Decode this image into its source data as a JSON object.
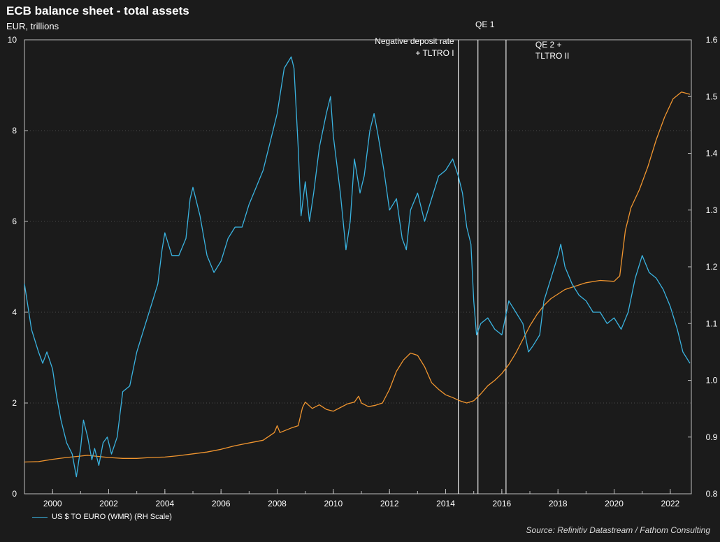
{
  "chart_data": {
    "type": "line",
    "title": "ECB balance sheet - total assets",
    "subtitle": "EUR, trillions",
    "source": "Source: Refinitiv Datastream / Fathom Consulting",
    "x_range": [
      1999.0,
      2022.75
    ],
    "x_ticks": [
      2000,
      2002,
      2004,
      2006,
      2008,
      2010,
      2012,
      2014,
      2016,
      2018,
      2020,
      2022
    ],
    "left_axis": {
      "ylim": [
        0,
        10
      ],
      "ticks": [
        0,
        2,
        4,
        6,
        8,
        10
      ]
    },
    "right_axis": {
      "ylim": [
        0.8,
        1.6
      ],
      "ticks": [
        0.8,
        0.9,
        1.0,
        1.1,
        1.2,
        1.3,
        1.4,
        1.5,
        1.6
      ]
    },
    "grid": "horizontal dotted",
    "legend_position": "bottom-left",
    "colors": {
      "total_assets": "#f0952f",
      "usd_euro": "#3ab3e0",
      "event_lines": "#e8e8e8"
    },
    "events": [
      {
        "x": 2014.45,
        "label_lines": [
          "Negative deposit rate",
          "+ TLTRO I"
        ],
        "align": "right"
      },
      {
        "x": 2015.15,
        "label_lines": [
          "QE 1"
        ],
        "align": "above"
      },
      {
        "x": 2016.15,
        "label_lines": [
          "QE 2 +",
          "TLTRO II"
        ],
        "align": "left"
      }
    ],
    "series": [
      {
        "name": "",
        "axis": "left",
        "color_key": "total_assets",
        "points": [
          [
            1999.0,
            0.7
          ],
          [
            1999.5,
            0.71
          ],
          [
            2000.0,
            0.76
          ],
          [
            2000.5,
            0.8
          ],
          [
            2001.0,
            0.83
          ],
          [
            2001.25,
            0.85
          ],
          [
            2001.5,
            0.83
          ],
          [
            2002.0,
            0.8
          ],
          [
            2002.5,
            0.78
          ],
          [
            2003.0,
            0.78
          ],
          [
            2003.5,
            0.8
          ],
          [
            2004.0,
            0.81
          ],
          [
            2004.5,
            0.84
          ],
          [
            2005.0,
            0.88
          ],
          [
            2005.5,
            0.92
          ],
          [
            2006.0,
            0.98
          ],
          [
            2006.5,
            1.06
          ],
          [
            2007.0,
            1.12
          ],
          [
            2007.5,
            1.18
          ],
          [
            2007.9,
            1.35
          ],
          [
            2008.0,
            1.5
          ],
          [
            2008.1,
            1.35
          ],
          [
            2008.5,
            1.45
          ],
          [
            2008.75,
            1.5
          ],
          [
            2008.9,
            1.9
          ],
          [
            2009.0,
            2.02
          ],
          [
            2009.25,
            1.88
          ],
          [
            2009.5,
            1.96
          ],
          [
            2009.75,
            1.86
          ],
          [
            2010.0,
            1.82
          ],
          [
            2010.25,
            1.9
          ],
          [
            2010.5,
            1.98
          ],
          [
            2010.75,
            2.02
          ],
          [
            2010.9,
            2.15
          ],
          [
            2011.0,
            2.0
          ],
          [
            2011.25,
            1.92
          ],
          [
            2011.5,
            1.95
          ],
          [
            2011.75,
            2.0
          ],
          [
            2012.0,
            2.3
          ],
          [
            2012.25,
            2.7
          ],
          [
            2012.5,
            2.95
          ],
          [
            2012.75,
            3.1
          ],
          [
            2013.0,
            3.05
          ],
          [
            2013.25,
            2.8
          ],
          [
            2013.5,
            2.45
          ],
          [
            2013.75,
            2.3
          ],
          [
            2014.0,
            2.18
          ],
          [
            2014.25,
            2.12
          ],
          [
            2014.5,
            2.05
          ],
          [
            2014.75,
            2.0
          ],
          [
            2015.0,
            2.05
          ],
          [
            2015.25,
            2.2
          ],
          [
            2015.5,
            2.38
          ],
          [
            2015.75,
            2.5
          ],
          [
            2016.0,
            2.65
          ],
          [
            2016.25,
            2.85
          ],
          [
            2016.5,
            3.1
          ],
          [
            2016.75,
            3.4
          ],
          [
            2017.0,
            3.7
          ],
          [
            2017.25,
            3.95
          ],
          [
            2017.5,
            4.15
          ],
          [
            2017.75,
            4.3
          ],
          [
            2018.0,
            4.4
          ],
          [
            2018.25,
            4.5
          ],
          [
            2018.5,
            4.55
          ],
          [
            2018.75,
            4.6
          ],
          [
            2019.0,
            4.65
          ],
          [
            2019.5,
            4.7
          ],
          [
            2020.0,
            4.68
          ],
          [
            2020.2,
            4.8
          ],
          [
            2020.4,
            5.8
          ],
          [
            2020.6,
            6.3
          ],
          [
            2020.9,
            6.7
          ],
          [
            2021.2,
            7.2
          ],
          [
            2021.5,
            7.8
          ],
          [
            2021.8,
            8.3
          ],
          [
            2022.1,
            8.7
          ],
          [
            2022.4,
            8.85
          ],
          [
            2022.7,
            8.8
          ]
        ]
      },
      {
        "name": "US $ TO EURO (WMR) (RH Scale)",
        "axis": "right",
        "color_key": "usd_euro",
        "points": [
          [
            1999.0,
            1.17
          ],
          [
            1999.25,
            1.09
          ],
          [
            1999.5,
            1.05
          ],
          [
            1999.65,
            1.03
          ],
          [
            1999.8,
            1.05
          ],
          [
            2000.0,
            1.02
          ],
          [
            2000.15,
            0.97
          ],
          [
            2000.3,
            0.93
          ],
          [
            2000.5,
            0.89
          ],
          [
            2000.7,
            0.87
          ],
          [
            2000.85,
            0.83
          ],
          [
            2001.0,
            0.88
          ],
          [
            2001.1,
            0.93
          ],
          [
            2001.25,
            0.9
          ],
          [
            2001.4,
            0.86
          ],
          [
            2001.5,
            0.88
          ],
          [
            2001.65,
            0.85
          ],
          [
            2001.8,
            0.89
          ],
          [
            2001.95,
            0.9
          ],
          [
            2002.1,
            0.87
          ],
          [
            2002.3,
            0.9
          ],
          [
            2002.5,
            0.98
          ],
          [
            2002.75,
            0.99
          ],
          [
            2003.0,
            1.05
          ],
          [
            2003.25,
            1.09
          ],
          [
            2003.5,
            1.13
          ],
          [
            2003.75,
            1.17
          ],
          [
            2003.9,
            1.23
          ],
          [
            2004.0,
            1.26
          ],
          [
            2004.25,
            1.22
          ],
          [
            2004.5,
            1.22
          ],
          [
            2004.75,
            1.25
          ],
          [
            2004.9,
            1.32
          ],
          [
            2005.0,
            1.34
          ],
          [
            2005.25,
            1.29
          ],
          [
            2005.5,
            1.22
          ],
          [
            2005.75,
            1.19
          ],
          [
            2006.0,
            1.21
          ],
          [
            2006.25,
            1.25
          ],
          [
            2006.5,
            1.27
          ],
          [
            2006.75,
            1.27
          ],
          [
            2007.0,
            1.31
          ],
          [
            2007.25,
            1.34
          ],
          [
            2007.5,
            1.37
          ],
          [
            2007.75,
            1.42
          ],
          [
            2008.0,
            1.47
          ],
          [
            2008.25,
            1.55
          ],
          [
            2008.5,
            1.57
          ],
          [
            2008.6,
            1.55
          ],
          [
            2008.75,
            1.41
          ],
          [
            2008.85,
            1.29
          ],
          [
            2009.0,
            1.35
          ],
          [
            2009.15,
            1.28
          ],
          [
            2009.3,
            1.33
          ],
          [
            2009.5,
            1.41
          ],
          [
            2009.75,
            1.47
          ],
          [
            2009.9,
            1.5
          ],
          [
            2010.0,
            1.43
          ],
          [
            2010.25,
            1.33
          ],
          [
            2010.45,
            1.23
          ],
          [
            2010.6,
            1.28
          ],
          [
            2010.75,
            1.39
          ],
          [
            2010.95,
            1.33
          ],
          [
            2011.1,
            1.36
          ],
          [
            2011.3,
            1.44
          ],
          [
            2011.45,
            1.47
          ],
          [
            2011.6,
            1.43
          ],
          [
            2011.8,
            1.37
          ],
          [
            2012.0,
            1.3
          ],
          [
            2012.25,
            1.32
          ],
          [
            2012.45,
            1.25
          ],
          [
            2012.6,
            1.23
          ],
          [
            2012.75,
            1.3
          ],
          [
            2013.0,
            1.33
          ],
          [
            2013.25,
            1.28
          ],
          [
            2013.5,
            1.32
          ],
          [
            2013.75,
            1.36
          ],
          [
            2014.0,
            1.37
          ],
          [
            2014.25,
            1.39
          ],
          [
            2014.45,
            1.36
          ],
          [
            2014.6,
            1.33
          ],
          [
            2014.75,
            1.27
          ],
          [
            2014.9,
            1.24
          ],
          [
            2015.0,
            1.14
          ],
          [
            2015.1,
            1.08
          ],
          [
            2015.25,
            1.1
          ],
          [
            2015.5,
            1.11
          ],
          [
            2015.75,
            1.09
          ],
          [
            2016.0,
            1.08
          ],
          [
            2016.25,
            1.14
          ],
          [
            2016.5,
            1.12
          ],
          [
            2016.75,
            1.1
          ],
          [
            2016.95,
            1.05
          ],
          [
            2017.1,
            1.06
          ],
          [
            2017.35,
            1.08
          ],
          [
            2017.5,
            1.14
          ],
          [
            2017.75,
            1.18
          ],
          [
            2018.0,
            1.22
          ],
          [
            2018.1,
            1.24
          ],
          [
            2018.25,
            1.2
          ],
          [
            2018.5,
            1.17
          ],
          [
            2018.75,
            1.15
          ],
          [
            2019.0,
            1.14
          ],
          [
            2019.25,
            1.12
          ],
          [
            2019.5,
            1.12
          ],
          [
            2019.75,
            1.1
          ],
          [
            2020.0,
            1.11
          ],
          [
            2020.25,
            1.09
          ],
          [
            2020.5,
            1.12
          ],
          [
            2020.75,
            1.18
          ],
          [
            2021.0,
            1.22
          ],
          [
            2021.25,
            1.19
          ],
          [
            2021.5,
            1.18
          ],
          [
            2021.75,
            1.16
          ],
          [
            2022.0,
            1.13
          ],
          [
            2022.25,
            1.09
          ],
          [
            2022.45,
            1.05
          ],
          [
            2022.7,
            1.03
          ]
        ]
      }
    ]
  }
}
